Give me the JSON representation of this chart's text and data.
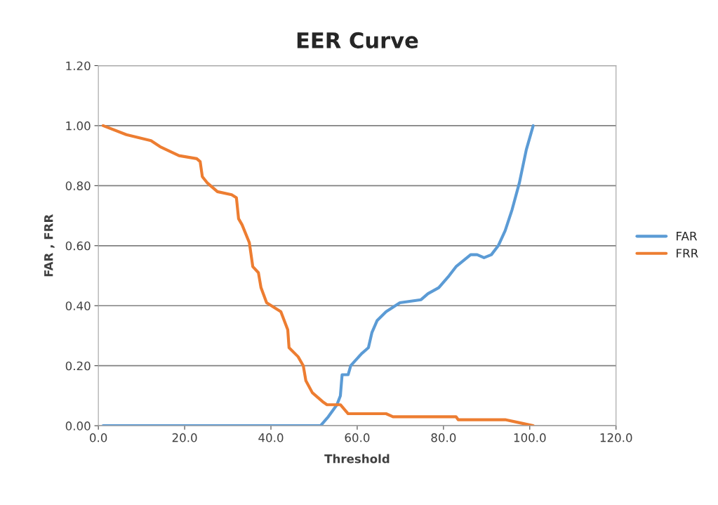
{
  "chart_data": {
    "type": "line",
    "title": "EER Curve",
    "xlabel": "Threshold",
    "ylabel": "FAR , FRR",
    "xlim": [
      0,
      120
    ],
    "xticks": [
      {
        "value": 0,
        "label": "0.0"
      },
      {
        "value": 20,
        "label": "20.0"
      },
      {
        "value": 40,
        "label": "40.0"
      },
      {
        "value": 60,
        "label": "60.0"
      },
      {
        "value": 80,
        "label": "80.0"
      },
      {
        "value": 100,
        "label": "100.0"
      },
      {
        "value": 120,
        "label": "120.0"
      }
    ],
    "ylim": [
      0,
      1.2
    ],
    "yticks": [
      {
        "value": 0,
        "label": "0.00"
      },
      {
        "value": 0.2,
        "label": "0.20"
      },
      {
        "value": 0.4,
        "label": "0.40"
      },
      {
        "value": 0.6,
        "label": "0.60"
      },
      {
        "value": 0.8,
        "label": "0.80"
      },
      {
        "value": 1.0,
        "label": "1.00"
      },
      {
        "value": 1.2,
        "label": "1.20"
      }
    ],
    "grid": "y",
    "legend": "right",
    "marker": "none",
    "line_style": "solid",
    "series": [
      {
        "name": "FAR",
        "color": "#5b9bd5",
        "x": [
          1.1,
          48.8,
          50.4,
          51.5,
          53.3,
          55.3,
          56.1,
          56.5,
          57.9,
          58.5,
          61.0,
          62.6,
          63.4,
          64.6,
          66.7,
          69.9,
          74.8,
          76.4,
          78.9,
          81.3,
          82.9,
          84.6,
          86.3,
          87.8,
          89.4,
          91.1,
          92.7,
          94.3,
          95.9,
          97.6,
          99.2,
          100.8
        ],
        "values": [
          0.0,
          0.0,
          0.0,
          0.0,
          0.03,
          0.07,
          0.1,
          0.17,
          0.17,
          0.2,
          0.24,
          0.26,
          0.31,
          0.35,
          0.38,
          0.41,
          0.42,
          0.44,
          0.46,
          0.5,
          0.53,
          0.55,
          0.57,
          0.57,
          0.56,
          0.57,
          0.6,
          0.65,
          0.72,
          0.81,
          0.92,
          1.0
        ]
      },
      {
        "name": "FRR",
        "color": "#ed7d31",
        "x": [
          1.1,
          6.5,
          12.2,
          14.3,
          18.7,
          22.8,
          23.6,
          24.1,
          25.2,
          27.6,
          30.9,
          32.0,
          32.5,
          33.3,
          35.0,
          35.8,
          37.1,
          37.7,
          39.0,
          42.3,
          43.9,
          44.2,
          46.3,
          47.5,
          48.1,
          49.6,
          52.0,
          53.0,
          54.3,
          56.1,
          57.9,
          66.7,
          68.3,
          82.9,
          83.4,
          94.3,
          97.6,
          100.8
        ],
        "values": [
          1.0,
          0.97,
          0.95,
          0.93,
          0.9,
          0.89,
          0.88,
          0.83,
          0.81,
          0.78,
          0.77,
          0.76,
          0.69,
          0.67,
          0.61,
          0.53,
          0.51,
          0.46,
          0.41,
          0.38,
          0.32,
          0.26,
          0.23,
          0.2,
          0.15,
          0.11,
          0.08,
          0.07,
          0.07,
          0.07,
          0.04,
          0.04,
          0.03,
          0.03,
          0.02,
          0.02,
          0.01,
          0.0
        ]
      }
    ]
  }
}
